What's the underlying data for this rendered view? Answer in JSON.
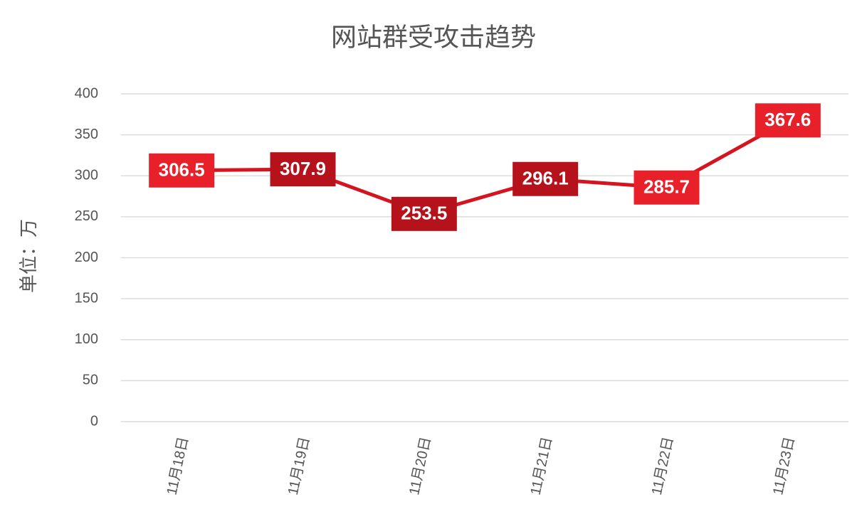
{
  "chart_data": {
    "type": "line",
    "title": "网站群受攻击趋势",
    "y_label": "单位：万",
    "categories": [
      "11月18日",
      "11月19日",
      "11月20日",
      "11月21日",
      "11月22日",
      "11月23日"
    ],
    "series": [
      {
        "color": "#d4141f",
        "values": [
          306.5,
          307.9,
          253.5,
          296.1,
          285.7,
          367.6
        ],
        "label_colors": [
          "#e8202a",
          "#b5121b",
          "#b5121b",
          "#b5121b",
          "#e8202a",
          "#e8202a"
        ]
      }
    ],
    "ylim": [
      0,
      400
    ],
    "yticks": [
      0,
      50,
      100,
      150,
      200,
      250,
      300,
      350,
      400
    ],
    "grid": true
  }
}
